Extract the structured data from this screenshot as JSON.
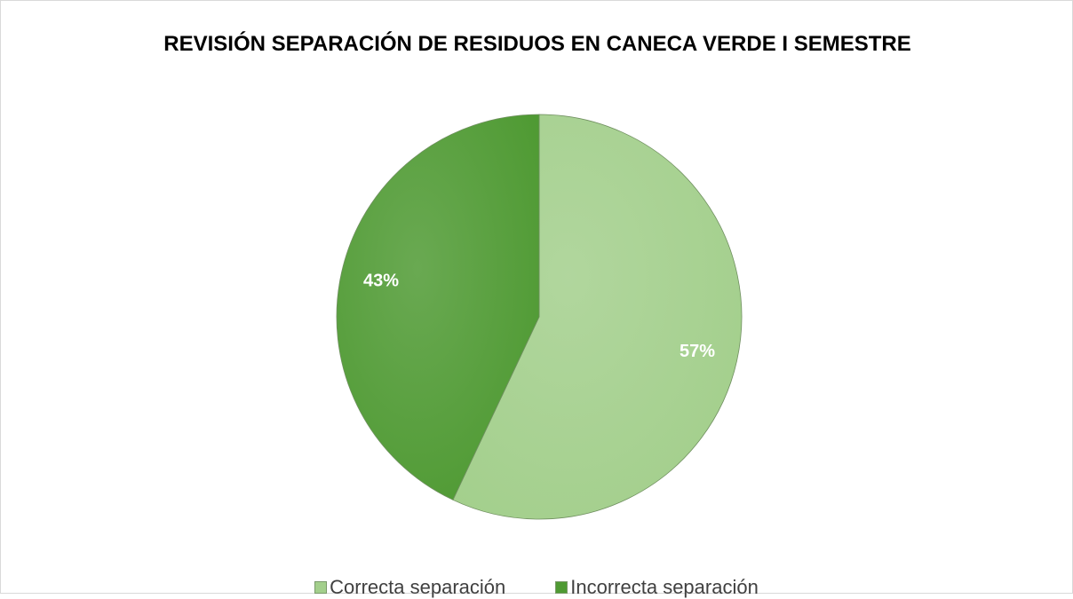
{
  "chart_data": {
    "type": "pie",
    "title": "REVISIÓN SEPARACIÓN DE RESIDUOS EN CANECA VERDE  I SEMESTRE",
    "categories": [
      "Correcta separación",
      "Incorrecta separación"
    ],
    "values": [
      57,
      43
    ],
    "value_labels": [
      "57%",
      "43%"
    ],
    "colors": [
      "#a3cf8c",
      "#4f9a33"
    ],
    "legend": "bottom"
  }
}
